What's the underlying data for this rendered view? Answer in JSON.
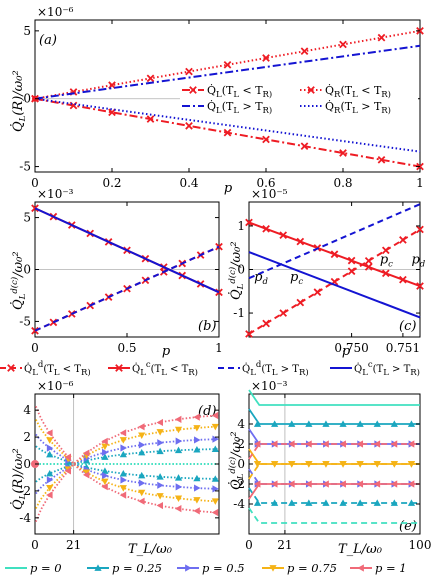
{
  "colors": {
    "red": "#ee1c24",
    "blue": "#1414d2",
    "teal": "#40e0c0",
    "cyan": "#1aa6bf",
    "purple": "#6e6ef0",
    "yellow": "#f5b316",
    "pink": "#f06a78",
    "grid": "#b0b0b0"
  },
  "chart_data": [
    {
      "panel": "a",
      "panel_label": "(a)",
      "type": "line",
      "exponent": "×10⁻⁶",
      "xlabel": "p",
      "ylabel": "Q̇_L(R)/ω₀²",
      "xlim": [
        0,
        1
      ],
      "ylim": [
        -5.4,
        5.8
      ],
      "xticks": [
        "0",
        "0.2",
        "0.4",
        "0.6",
        "0.8",
        "1"
      ],
      "yticks": [
        "-5",
        "0",
        "5"
      ],
      "series": [
        {
          "name": "Q̇_L(T_L < T_R)",
          "style": "dashdot",
          "color": "red",
          "marker": "x",
          "x": [
            0,
            1
          ],
          "y": [
            0,
            -5
          ]
        },
        {
          "name": "Q̇_R(T_L < T_R)",
          "style": "dotted",
          "color": "red",
          "marker": "x",
          "x": [
            0,
            1
          ],
          "y": [
            0,
            5
          ]
        },
        {
          "name": "Q̇_L(T_L > T_R)",
          "style": "dashdot",
          "color": "blue",
          "x": [
            0,
            1
          ],
          "y": [
            0,
            3.9
          ]
        },
        {
          "name": "Q̇_R(T_L > T_R)",
          "style": "dotted",
          "color": "blue",
          "x": [
            0,
            1
          ],
          "y": [
            0,
            -3.9
          ]
        }
      ],
      "legend": [
        "Q̇_L(T_L < T_R)",
        "Q̇_R(T_L < T_R)",
        "Q̇_L(T_L > T_R)",
        "Q̇_R(T_L > T_R)"
      ]
    },
    {
      "panel": "b",
      "panel_label": "(b)",
      "type": "line",
      "exponent": "×10⁻³",
      "xlabel": "p",
      "ylabel": "Q̇_L^{d(c)}/ω₀²",
      "xlim": [
        0,
        1
      ],
      "ylim": [
        -6.5,
        6.5
      ],
      "xticks": [
        "0",
        "0.5",
        "1"
      ],
      "yticks": [
        "-5",
        "0",
        "5"
      ],
      "series": [
        {
          "name": "Q̇_L^d(T_L < T_R)",
          "style": "dashed",
          "color": "red",
          "marker": "x",
          "x": [
            0,
            1
          ],
          "y": [
            -5.9,
            2.2
          ]
        },
        {
          "name": "Q̇_L^c(T_L < T_R)",
          "style": "solid",
          "color": "red",
          "marker": "x",
          "x": [
            0,
            1
          ],
          "y": [
            5.9,
            -2.2
          ]
        },
        {
          "name": "Q̇_L^d(T_L > T_R)",
          "style": "dashed",
          "color": "blue",
          "x": [
            0,
            1
          ],
          "y": [
            -5.9,
            2.2
          ]
        },
        {
          "name": "Q̇_L^c(T_L > T_R)",
          "style": "solid",
          "color": "blue",
          "x": [
            0,
            1
          ],
          "y": [
            5.9,
            -2.2
          ]
        }
      ]
    },
    {
      "panel": "c",
      "panel_label": "(c)",
      "type": "line",
      "exponent": "×10⁻⁵",
      "xlabel": "p",
      "ylabel": "Q̇_L^{d(c)}/ω₀²",
      "xlim": [
        0.7493,
        0.7513
      ],
      "ylim": [
        -1.55,
        1.55
      ],
      "xticks": [
        "0.750",
        "0.751"
      ],
      "yticks": [
        "-1",
        "0",
        "1"
      ],
      "annotations": [
        {
          "text": "p_d",
          "color": "blue",
          "x": 0.74936,
          "y": -0.26
        },
        {
          "text": "p_c",
          "color": "blue",
          "x": 0.74978,
          "y": -0.26
        },
        {
          "text": "p_c",
          "color": "red",
          "x": 0.75083,
          "y": 0.14
        },
        {
          "text": "p_d",
          "color": "red",
          "x": 0.7512,
          "y": 0.14
        }
      ],
      "series": [
        {
          "name": "Q̇_L^d(T_L < T_R)",
          "style": "dashed",
          "color": "red",
          "marker": "x",
          "x": [
            0.7493,
            0.7513
          ],
          "y": [
            -1.48,
            0.92
          ]
        },
        {
          "name": "Q̇_L^c(T_L < T_R)",
          "style": "solid",
          "color": "red",
          "marker": "x",
          "x": [
            0.7493,
            0.7513
          ],
          "y": [
            1.08,
            -0.38
          ]
        },
        {
          "name": "Q̇_L^d(T_L > T_R)",
          "style": "dashed",
          "color": "blue",
          "x": [
            0.7493,
            0.7513
          ],
          "y": [
            -0.2,
            1.5
          ]
        },
        {
          "name": "Q̇_L^c(T_L > T_R)",
          "style": "solid",
          "color": "blue",
          "x": [
            0.7493,
            0.7513
          ],
          "y": [
            0.4,
            -1.1
          ]
        }
      ]
    },
    {
      "panel": "d",
      "panel_label": "(d)",
      "type": "line",
      "exponent": "×10⁻⁶",
      "xlabel": "T_L/ω₀",
      "ylabel": "Q̇_L(R)/ω₀²",
      "xlim": [
        0,
        100
      ],
      "ylim": [
        -5.2,
        5.2
      ],
      "xticks": [
        "0",
        "21"
      ],
      "yticks": [
        "-4",
        "-2",
        "0",
        "2",
        "4"
      ],
      "vline": 21,
      "series": [
        {
          "name": "p = 0",
          "color": "teal",
          "amp": 0
        },
        {
          "name": "p = 0.25",
          "color": "cyan",
          "amp": 1.2
        },
        {
          "name": "p = 0.5",
          "color": "purple",
          "amp": 2.0
        },
        {
          "name": "p = 0.75",
          "color": "yellow",
          "amp": 3.0
        },
        {
          "name": "p = 1",
          "color": "pink",
          "amp": 3.9
        }
      ]
    },
    {
      "panel": "e",
      "panel_label": "(e)",
      "type": "line",
      "exponent": "×10⁻³",
      "xlabel": "T_L/ω₀",
      "ylabel": "Q̇_L^{d(c)}/ω₀²",
      "xlim": [
        0,
        100
      ],
      "ylim": [
        -7,
        7
      ],
      "xticks": [
        "0",
        "21",
        "100"
      ],
      "yticks": [
        "-4",
        "-2",
        "0",
        "2",
        "4"
      ],
      "vline": 21,
      "series": [
        {
          "name": "p = 0",
          "color": "teal",
          "c": 5.9,
          "d": -5.9
        },
        {
          "name": "p = 0.25",
          "color": "cyan",
          "c": 4.0,
          "d": -3.9
        },
        {
          "name": "p = 0.5",
          "color": "purple",
          "c": 2.0,
          "d": -2.0
        },
        {
          "name": "p = 0.75",
          "color": "yellow",
          "c": 0.0,
          "d": 0.0
        },
        {
          "name": "p = 1",
          "color": "pink",
          "c": -2.0,
          "d": 2.0
        }
      ]
    }
  ],
  "legend_middle": [
    "Q̇_L^d(T_L < T_R)",
    "Q̇_L^c(T_L < T_R)",
    "Q̇_L^d(T_L > T_R)",
    "Q̇_L^c(T_L > T_R)"
  ],
  "legend_bottom": [
    "p = 0",
    "p = 0.25",
    "p = 0.5",
    "p = 0.75",
    "p = 1"
  ]
}
